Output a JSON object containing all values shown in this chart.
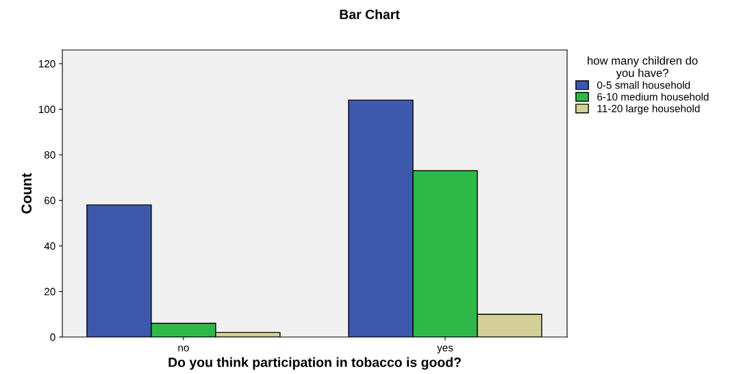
{
  "chart_data": {
    "type": "bar",
    "title": "Bar Chart",
    "xlabel": "Do you think participation in tobacco is good?",
    "ylabel": "Count",
    "legend_title": "how many children do\nyou have?",
    "categories": [
      "no",
      "yes"
    ],
    "series": [
      {
        "name": "0-5 small household",
        "color": "#3e58ac",
        "values": [
          58,
          104
        ]
      },
      {
        "name": "6-10 medium household",
        "color": "#2eb848",
        "values": [
          6,
          73
        ]
      },
      {
        "name": "11-20 large household",
        "color": "#d4cf97",
        "values": [
          2,
          10
        ]
      }
    ],
    "ylim": [
      0,
      126
    ],
    "yticks": [
      0,
      20,
      40,
      60,
      80,
      100,
      120
    ],
    "grid": false,
    "legend": "top right"
  }
}
